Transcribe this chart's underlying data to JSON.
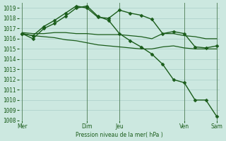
{
  "background_color": "#cce8e0",
  "grid_color": "#aacfc8",
  "line_color": "#1a5c1a",
  "text_color": "#1a5c1a",
  "xlabel_text": "Pression niveau de la mer( hPa )",
  "ylim": [
    1008,
    1019.5
  ],
  "ytick_vals": [
    1008,
    1009,
    1010,
    1011,
    1012,
    1013,
    1014,
    1015,
    1016,
    1017,
    1018,
    1019
  ],
  "day_labels": [
    [
      0,
      "Mer"
    ],
    [
      6,
      "Dim"
    ],
    [
      9,
      "Jeu"
    ],
    [
      15,
      "Ven"
    ],
    [
      18,
      "Sam"
    ]
  ],
  "xlim": [
    -0.3,
    18.3
  ],
  "series": [
    {
      "x": [
        0,
        1,
        2,
        3,
        4,
        5,
        6,
        7,
        8,
        9,
        10,
        11,
        12,
        13,
        14,
        15,
        16,
        17,
        18
      ],
      "y": [
        1016.5,
        1016.3,
        1017.2,
        1017.8,
        1018.5,
        1019.2,
        1019.0,
        1018.1,
        1018.0,
        1018.8,
        1018.5,
        1018.3,
        1017.9,
        1016.5,
        1016.7,
        1016.5,
        1015.2,
        1015.1,
        1015.3
      ],
      "marker": "D",
      "markersize": 2.5,
      "linewidth": 1.0
    },
    {
      "x": [
        0,
        1,
        2,
        3,
        4,
        5,
        6,
        7,
        8,
        9,
        10,
        11,
        12,
        13,
        14,
        15,
        16,
        17,
        18
      ],
      "y": [
        1016.5,
        1016.0,
        1017.0,
        1017.5,
        1018.2,
        1019.0,
        1019.2,
        1018.2,
        1017.8,
        1016.5,
        1015.8,
        1015.2,
        1014.5,
        1013.5,
        1012.0,
        1011.7,
        1010.0,
        1010.0,
        1008.4
      ],
      "marker": "D",
      "markersize": 2.5,
      "linewidth": 1.0
    },
    {
      "x": [
        0,
        1,
        2,
        3,
        4,
        5,
        6,
        7,
        8,
        9,
        10,
        11,
        12,
        13,
        14,
        15,
        16,
        17,
        18
      ],
      "y": [
        1016.6,
        1016.5,
        1016.5,
        1016.6,
        1016.6,
        1016.5,
        1016.5,
        1016.4,
        1016.4,
        1016.4,
        1016.3,
        1016.2,
        1016.0,
        1016.5,
        1016.5,
        1016.3,
        1016.2,
        1016.0,
        1016.0
      ],
      "marker": null,
      "markersize": 0,
      "linewidth": 0.9
    },
    {
      "x": [
        0,
        1,
        2,
        3,
        4,
        5,
        6,
        7,
        8,
        9,
        10,
        11,
        12,
        13,
        14,
        15,
        16,
        17,
        18
      ],
      "y": [
        1016.5,
        1016.3,
        1016.2,
        1016.1,
        1015.9,
        1015.8,
        1015.6,
        1015.4,
        1015.3,
        1015.2,
        1015.1,
        1015.0,
        1015.0,
        1015.2,
        1015.3,
        1015.1,
        1015.0,
        1015.0,
        1015.0
      ],
      "marker": null,
      "markersize": 0,
      "linewidth": 0.9
    }
  ]
}
